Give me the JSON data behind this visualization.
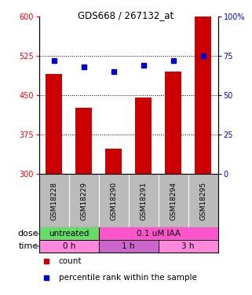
{
  "title": "GDS668 / 267132_at",
  "samples": [
    "GSM18228",
    "GSM18229",
    "GSM18290",
    "GSM18291",
    "GSM18294",
    "GSM18295"
  ],
  "bar_values": [
    490,
    425,
    348,
    445,
    495,
    600
  ],
  "dot_values": [
    72,
    68,
    65,
    69,
    72,
    75
  ],
  "bar_color": "#cc0000",
  "dot_color": "#0000cc",
  "ylim_left": [
    300,
    600
  ],
  "ylim_right": [
    0,
    100
  ],
  "yticks_left": [
    300,
    375,
    450,
    525,
    600
  ],
  "yticks_right": [
    0,
    25,
    50,
    75,
    100
  ],
  "yticklabels_right": [
    "0",
    "25",
    "50",
    "75",
    "100%"
  ],
  "grid_lines": [
    375,
    450,
    525
  ],
  "dose_green_color": "#66dd66",
  "dose_pink_color": "#ff55cc",
  "time_pink_color": "#ff88dd",
  "time_purple_color": "#cc66cc",
  "sample_bg_color": "#bbbbbb",
  "dose_row_label": "dose",
  "time_row_label": "time",
  "legend_bar": "count",
  "legend_dot": "percentile rank within the sample",
  "bg_color": "#ffffff"
}
